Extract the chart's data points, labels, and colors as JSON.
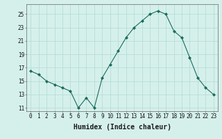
{
  "x": [
    0,
    1,
    2,
    3,
    4,
    5,
    6,
    7,
    8,
    9,
    10,
    11,
    12,
    13,
    14,
    15,
    16,
    17,
    18,
    19,
    20,
    21,
    22,
    23
  ],
  "y": [
    16.5,
    16.0,
    15.0,
    14.5,
    14.0,
    13.5,
    11.0,
    12.5,
    11.0,
    15.5,
    17.5,
    19.5,
    21.5,
    23.0,
    24.0,
    25.0,
    25.5,
    25.0,
    22.5,
    21.5,
    18.5,
    15.5,
    14.0,
    13.0
  ],
  "line_color": "#1a6b5e",
  "marker": "D",
  "marker_size": 2,
  "bg_color": "#d5f0eb",
  "grid_color": "#b8ddd7",
  "xlabel": "Humidex (Indice chaleur)",
  "xlim": [
    -0.5,
    23.5
  ],
  "ylim": [
    10.5,
    26.5
  ],
  "yticks": [
    11,
    13,
    15,
    17,
    19,
    21,
    23,
    25
  ],
  "xticks": [
    0,
    1,
    2,
    3,
    4,
    5,
    6,
    7,
    8,
    9,
    10,
    11,
    12,
    13,
    14,
    15,
    16,
    17,
    18,
    19,
    20,
    21,
    22,
    23
  ],
  "tick_fontsize": 5.5,
  "xlabel_fontsize": 7.0
}
